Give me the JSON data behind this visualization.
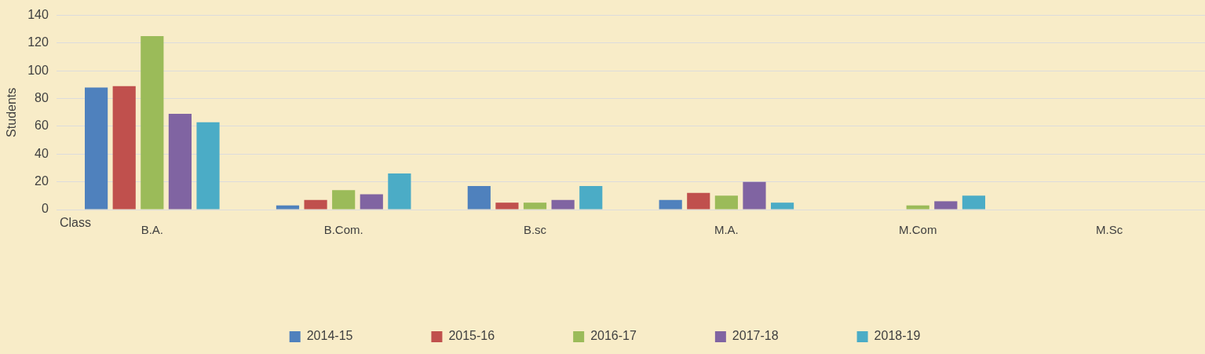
{
  "chart_data": {
    "type": "bar",
    "xlabel": "Class",
    "ylabel": "Students",
    "categories": [
      "B.A.",
      "B.Com.",
      "B.sc",
      "M.A.",
      "M.Com",
      "M.Sc"
    ],
    "series": [
      {
        "name": "2014-15",
        "color": "#4f81bd",
        "values": [
          88,
          3,
          17,
          7,
          0,
          0
        ]
      },
      {
        "name": "2015-16",
        "color": "#c0504d",
        "values": [
          89,
          7,
          5,
          12,
          0,
          0
        ]
      },
      {
        "name": "2016-17",
        "color": "#9bbb59",
        "values": [
          125,
          14,
          5,
          10,
          3,
          0
        ]
      },
      {
        "name": "2017-18",
        "color": "#8064a2",
        "values": [
          69,
          11,
          7,
          20,
          6,
          0
        ]
      },
      {
        "name": "2018-19",
        "color": "#4bacc6",
        "values": [
          63,
          26,
          17,
          5,
          10,
          0
        ]
      }
    ],
    "ylim": [
      0,
      140
    ],
    "yticks": [
      0,
      20,
      40,
      60,
      80,
      100,
      120,
      140
    ],
    "grid": "y",
    "legend": "bottom"
  }
}
